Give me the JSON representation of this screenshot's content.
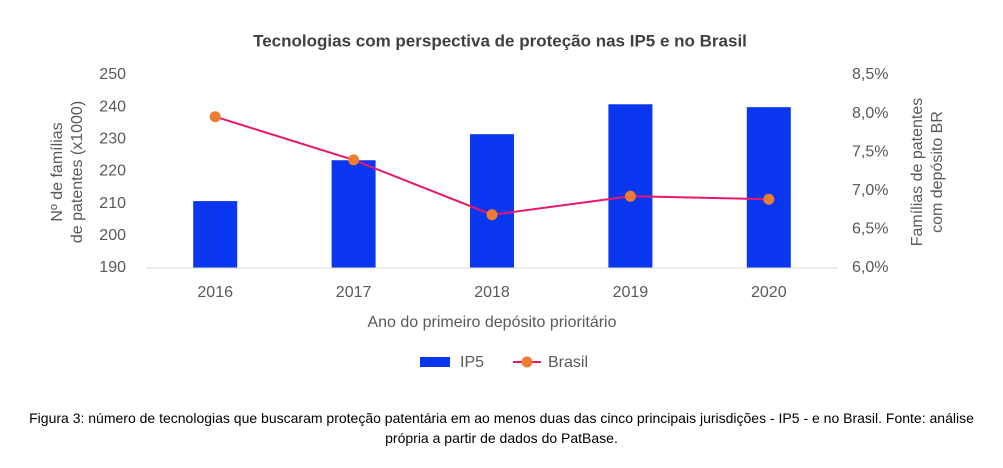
{
  "chart_data": {
    "type": "bar_line",
    "title": "Tecnologias com perspectiva de proteção nas IP5 e no Brasil",
    "xlabel": "Ano do primeiro depósito prioritário",
    "ylabel": [
      "Nº de famílias",
      "de patentes (x1000)"
    ],
    "y2label": [
      "Famílias de patentes",
      "com depósito BR"
    ],
    "categories": [
      "2016",
      "2017",
      "2018",
      "2019",
      "2020"
    ],
    "series": [
      {
        "name": "IP5",
        "type": "bar",
        "color": "#0a36f0",
        "values": [
          210.8,
          223.5,
          231.6,
          240.9,
          240.0
        ]
      },
      {
        "name": "Brasil",
        "type": "line",
        "axis": "y2",
        "color": "#e8176c",
        "marker_color": "#ed7d31",
        "values": [
          7.96,
          7.4,
          6.69,
          6.93,
          6.89
        ]
      }
    ],
    "ylim": [
      190,
      250
    ],
    "yticks": [
      190,
      200,
      210,
      220,
      230,
      240,
      250
    ],
    "y2lim": [
      6.0,
      8.5
    ],
    "y2ticks": [
      {
        "value": 6.0,
        "label": "6,0%"
      },
      {
        "value": 6.5,
        "label": "6,5%"
      },
      {
        "value": 7.0,
        "label": "7,0%"
      },
      {
        "value": 7.5,
        "label": "7,5%"
      },
      {
        "value": 8.0,
        "label": "8,0%"
      },
      {
        "value": 8.5,
        "label": "8,5%"
      }
    ],
    "grid": false,
    "legend": "bottom"
  },
  "caption": "Figura 3: número de tecnologias que buscaram proteção patentária em ao menos duas das cinco principais jurisdições - IP5 - e no Brasil. Fonte: análise própria a partir de dados do PatBase."
}
